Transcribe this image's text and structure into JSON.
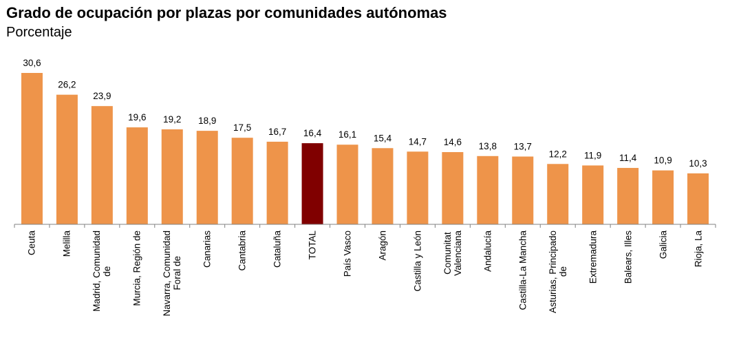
{
  "chart_data": {
    "type": "bar",
    "title": "Grado de ocupación por plazas por comunidades autónomas",
    "subtitle": "Porcentaje",
    "xlabel": "",
    "ylabel": "",
    "ylim": [
      0,
      30.6
    ],
    "grid": false,
    "categories": [
      "Ceuta",
      "Melilla",
      "Madrid, Comunidad\nde",
      "Murcia, Región de",
      "Navarra, Comunidad\nForal de",
      "Canarias",
      "Cantabria",
      "Cataluña",
      "TOTAL",
      "País Vasco",
      "Aragón",
      "Castilla y León",
      "Comunitat\nValenciana",
      "Andalucía",
      "Castilla-La Mancha",
      "Asturias, Principado\nde",
      "Extremadura",
      "Balears, Illes",
      "Galicia",
      "Rioja, La"
    ],
    "values": [
      30.6,
      26.2,
      23.9,
      19.6,
      19.2,
      18.9,
      17.5,
      16.7,
      16.4,
      16.1,
      15.4,
      14.7,
      14.6,
      13.8,
      13.7,
      12.2,
      11.9,
      11.4,
      10.9,
      10.3
    ],
    "data_labels": [
      "30,6",
      "26,2",
      "23,9",
      "19,6",
      "19,2",
      "18,9",
      "17,5",
      "16,7",
      "16,4",
      "16,1",
      "15,4",
      "14,7",
      "14,6",
      "13,8",
      "13,7",
      "12,2",
      "11,9",
      "11,4",
      "10,9",
      "10,3"
    ],
    "colors": {
      "default": "#EE944A",
      "highlight": "#800000"
    },
    "highlight_category": "TOTAL"
  }
}
